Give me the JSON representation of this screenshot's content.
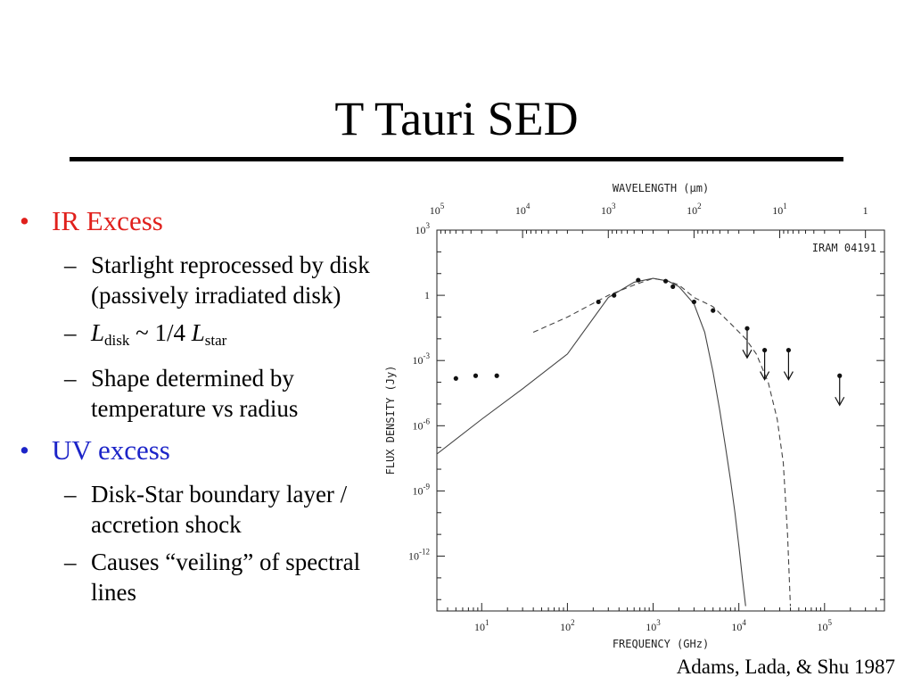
{
  "slide": {
    "title": "T Tauri SED",
    "citation": "Adams, Lada, & Shu  1987"
  },
  "bullets": [
    {
      "label": "IR Excess",
      "color": "#e0201c",
      "subs": [
        {
          "text": "Starlight reprocessed by disk (passively irradiated disk)"
        },
        {
          "L1": "L",
          "sub1": "disk",
          "mid": " ~ 1/4 ",
          "L2": "L",
          "sub2": "star"
        },
        {
          "text": "Shape determined by temperature vs radius"
        }
      ]
    },
    {
      "label": "UV excess",
      "color": "#1c24c8",
      "subs": [
        {
          "text": "Disk-Star boundary layer / accretion shock"
        },
        {
          "text": "Causes “veiling” of spectral lines"
        }
      ]
    }
  ],
  "chart_data": {
    "type": "scatter",
    "label": "IRAM 04191",
    "xlabel": "FREQUENCY (GHz)",
    "top_axis_label": "WAVELENGTH (μm)",
    "ylabel": "FLUX DENSITY (Jy)",
    "x_scale": "log",
    "y_scale": "log",
    "xlim": [
      3,
      500000.0
    ],
    "ylim": [
      3e-15,
      1000.0
    ],
    "x_tick_labels": [
      "10^1",
      "10^2",
      "10^3",
      "10^4",
      "10^5"
    ],
    "top_tick_labels": [
      "10^5",
      "10^4",
      "10^3",
      "10^2",
      "10^1",
      "1"
    ],
    "y_tick_labels": [
      "10^3",
      "1",
      "10^-3",
      "10^-6",
      "10^-9",
      "10^-12"
    ],
    "detections": [
      {
        "x": 5,
        "y": 0.00015
      },
      {
        "x": 8.5,
        "y": 0.0002
      },
      {
        "x": 15,
        "y": 0.0002
      },
      {
        "x": 230,
        "y": 0.5
      },
      {
        "x": 350,
        "y": 1.0
      },
      {
        "x": 670,
        "y": 5
      },
      {
        "x": 1400,
        "y": 4.5
      },
      {
        "x": 1700,
        "y": 2.5
      },
      {
        "x": 3000,
        "y": 0.5
      },
      {
        "x": 5000,
        "y": 0.2
      }
    ],
    "upper_limits": [
      {
        "x": 12500,
        "y": 0.03
      },
      {
        "x": 20000,
        "y": 0.003
      },
      {
        "x": 38000,
        "y": 0.003
      },
      {
        "x": 150000,
        "y": 0.0002
      }
    ],
    "series": [
      {
        "style": "solid",
        "x": [
          3,
          10,
          30,
          100,
          300,
          600,
          1000,
          1500,
          2000,
          3000,
          4000,
          5000,
          6000,
          7000,
          8000,
          9000,
          10000,
          11000,
          12000
        ],
        "y": [
          5e-08,
          2e-06,
          5e-05,
          0.002,
          0.8,
          4,
          6,
          4.5,
          2.5,
          0.4,
          0.02,
          0.0003,
          5e-06,
          1e-07,
          3e-09,
          1e-10,
          3e-12,
          1e-13,
          5e-15
        ]
      },
      {
        "style": "dashed",
        "x": [
          40,
          100,
          300,
          600,
          1000,
          1500,
          2000,
          3000,
          5000,
          8000,
          12000,
          16000,
          22000,
          28000,
          33000,
          37000,
          40000
        ],
        "y": [
          0.02,
          0.1,
          1.0,
          3,
          6,
          4.5,
          3,
          0.8,
          0.3,
          0.05,
          0.01,
          0.002,
          0.0001,
          2e-06,
          2e-08,
          1e-11,
          5e-15
        ]
      }
    ]
  }
}
